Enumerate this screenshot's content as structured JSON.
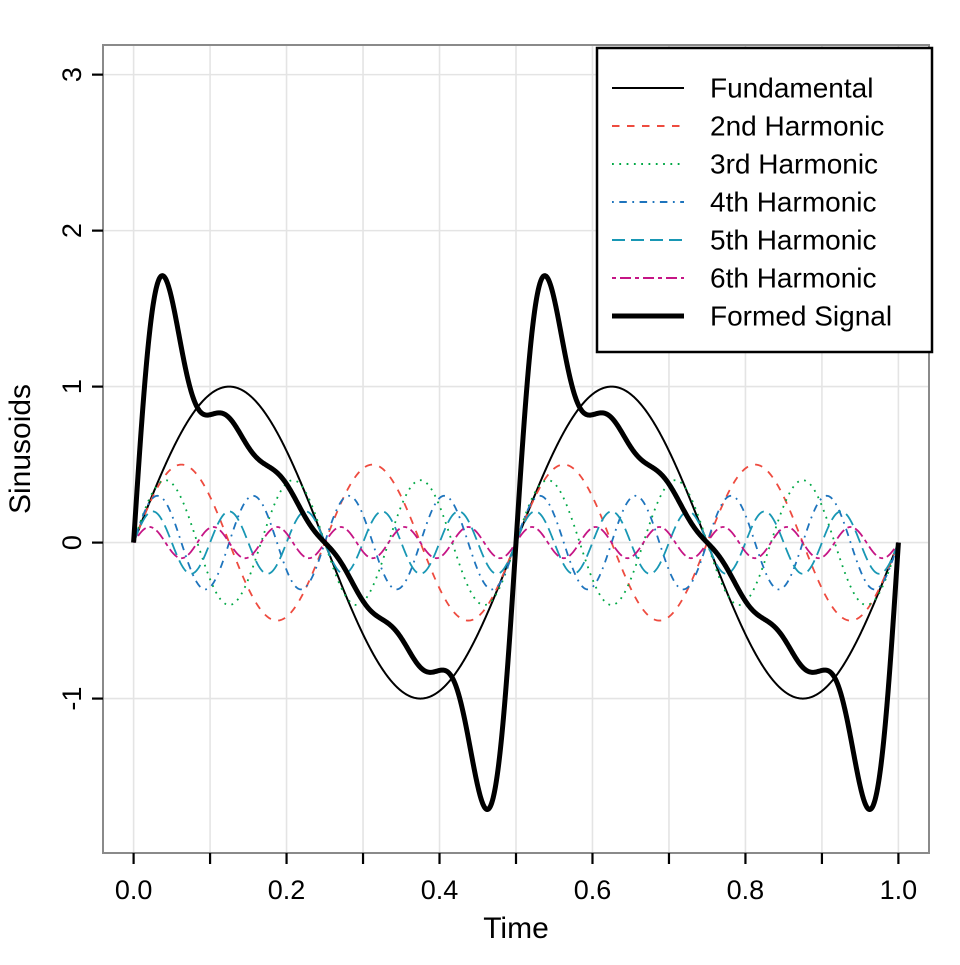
{
  "figure": {
    "background": "#ffffff",
    "plot_border_color": "#8a8a8a",
    "grid_color": "#e4e4e4",
    "tick_color": "#000000",
    "text_color": "#000000"
  },
  "chart_data": {
    "type": "line",
    "title": "",
    "xlabel": "Time",
    "ylabel": "Sinusoids",
    "xlim": [
      -0.04,
      1.04
    ],
    "ylim": [
      -1.99,
      3.19
    ],
    "x_domain": [
      0,
      1
    ],
    "grid": true,
    "x_major_ticks": [
      0.0,
      0.2,
      0.4,
      0.6,
      0.8,
      1.0
    ],
    "x_major_tick_labels": [
      "0.0",
      "0.2",
      "0.4",
      "0.6",
      "0.8",
      "1.0"
    ],
    "x_minor_ticks": [
      0.1,
      0.3,
      0.5,
      0.7,
      0.9
    ],
    "y_ticks": [
      -1,
      0,
      1,
      2,
      3
    ],
    "y_tick_labels": [
      "-1",
      "0",
      "1",
      "2",
      "3"
    ],
    "legend_position": "top-right",
    "series": [
      {
        "label": "Fundamental",
        "kind": "sinusoid",
        "amplitude": 1.0,
        "frequency_cycles_per_unit": 2,
        "color": "#000000",
        "linetype": "solid",
        "line_width": 2
      },
      {
        "label": "2nd Harmonic",
        "kind": "sinusoid",
        "amplitude": 0.5,
        "frequency_cycles_per_unit": 4,
        "color": "#ee4b3f",
        "linetype": "dashed",
        "line_width": 1.8
      },
      {
        "label": "3rd Harmonic",
        "kind": "sinusoid",
        "amplitude": 0.4,
        "frequency_cycles_per_unit": 6,
        "color": "#00a845",
        "linetype": "dotted",
        "line_width": 1.8
      },
      {
        "label": "4th Harmonic",
        "kind": "sinusoid",
        "amplitude": 0.3,
        "frequency_cycles_per_unit": 8,
        "color": "#1e74bd",
        "linetype": "dotdash",
        "line_width": 1.8
      },
      {
        "label": "5th Harmonic",
        "kind": "sinusoid",
        "amplitude": 0.2,
        "frequency_cycles_per_unit": 10,
        "color": "#1897b4",
        "linetype": "longdash",
        "line_width": 1.8
      },
      {
        "label": "6th Harmonic",
        "kind": "sinusoid",
        "amplitude": 0.1,
        "frequency_cycles_per_unit": 12,
        "color": "#c51585",
        "linetype": "twodash",
        "line_width": 1.8
      },
      {
        "label": "Formed Signal",
        "kind": "sum_of_sinusoids",
        "color": "#000000",
        "linetype": "solid",
        "line_width": 5,
        "observed_peak_value": 1.7,
        "observed_peak_time": 0.04
      }
    ]
  }
}
